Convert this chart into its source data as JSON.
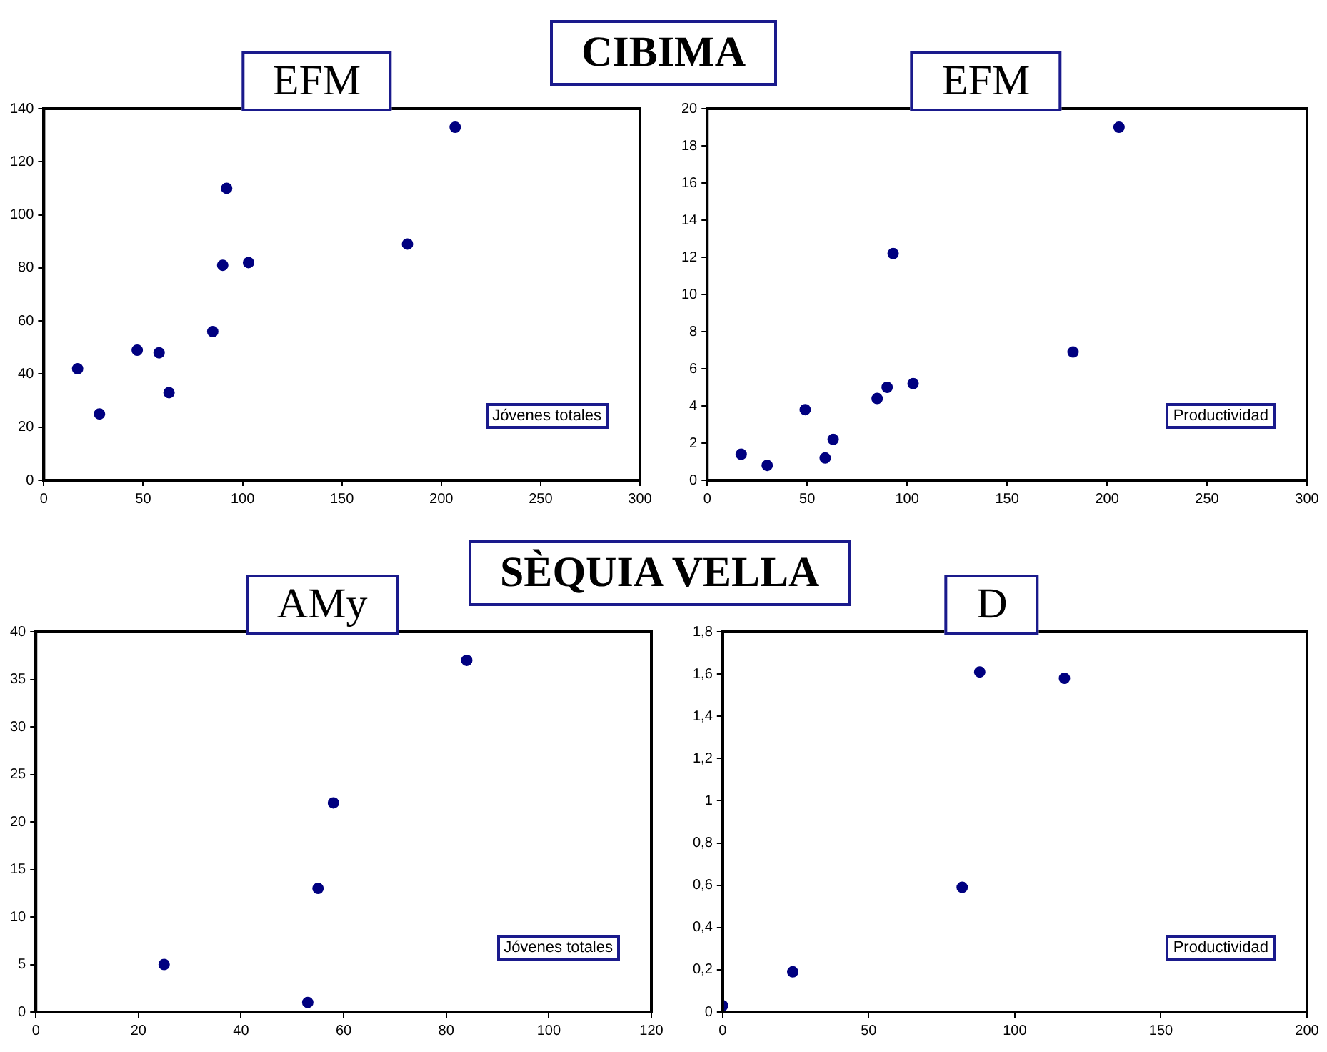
{
  "chart_data": [
    {
      "type": "scatter",
      "subtitle": "CIBIMA",
      "title": "EFM",
      "annotations": [
        "Jóvenes totales"
      ],
      "marker": "circle",
      "xlim": [
        0,
        300
      ],
      "xticks": [
        0,
        50,
        100,
        150,
        200,
        250,
        300
      ],
      "ylim": [
        0,
        140
      ],
      "yticks": [
        0,
        20,
        40,
        60,
        80,
        100,
        120,
        140
      ],
      "series": [
        {
          "color": "#000080",
          "x": [
            17,
            28,
            47,
            58,
            63,
            85,
            90,
            92,
            103,
            183,
            207
          ],
          "values": [
            42,
            25,
            49,
            48,
            33,
            56,
            81,
            110,
            82,
            89,
            133
          ]
        }
      ]
    },
    {
      "type": "scatter",
      "title": "EFM",
      "annotations": [
        "Productividad"
      ],
      "marker": "circle",
      "xlim": [
        0,
        300
      ],
      "xticks": [
        0,
        50,
        100,
        150,
        200,
        250,
        300
      ],
      "ylim": [
        0,
        20
      ],
      "yticks": [
        0,
        2,
        4,
        6,
        8,
        10,
        12,
        14,
        16,
        18,
        20
      ],
      "series": [
        {
          "color": "#000080",
          "x": [
            17,
            30,
            49,
            59,
            63,
            85,
            90,
            93,
            103,
            183,
            206
          ],
          "values": [
            1.4,
            0.8,
            3.8,
            1.2,
            2.2,
            4.4,
            5.0,
            12.2,
            5.2,
            6.9,
            19
          ]
        }
      ]
    },
    {
      "type": "scatter",
      "subtitle": "SÈQUIA VELLA",
      "title": "AMy",
      "annotations": [
        "Jóvenes totales"
      ],
      "marker": "circle",
      "xlim": [
        0,
        120
      ],
      "xticks": [
        0,
        20,
        40,
        60,
        80,
        100,
        120
      ],
      "ylim": [
        0,
        40
      ],
      "yticks": [
        0,
        5,
        10,
        15,
        20,
        25,
        30,
        35,
        40
      ],
      "series": [
        {
          "color": "#000080",
          "x": [
            25,
            53,
            55,
            58,
            84
          ],
          "values": [
            5,
            1,
            13,
            22,
            37
          ]
        }
      ]
    },
    {
      "type": "scatter",
      "title": "D",
      "annotations": [
        "Productividad"
      ],
      "marker": "circle",
      "xlim": [
        0,
        200
      ],
      "xticks": [
        0,
        50,
        100,
        150,
        200
      ],
      "ylim": [
        0,
        1.8
      ],
      "yticks": [
        0,
        {
          "value": 0.2,
          "label": "0,2"
        },
        {
          "value": 0.4,
          "label": "0,4"
        },
        {
          "value": 0.6,
          "label": "0,6"
        },
        {
          "value": 0.8,
          "label": "0,8"
        },
        1,
        {
          "value": 1.2,
          "label": "1,2"
        },
        {
          "value": 1.4,
          "label": "1,4"
        },
        {
          "value": 1.6,
          "label": "1,6"
        },
        {
          "value": 1.8,
          "label": "1,8"
        }
      ],
      "series": [
        {
          "color": "#000080",
          "x": [
            0,
            24,
            82,
            88,
            117
          ],
          "values": [
            0.03,
            0.19,
            0.59,
            1.61,
            1.58
          ]
        }
      ]
    }
  ]
}
